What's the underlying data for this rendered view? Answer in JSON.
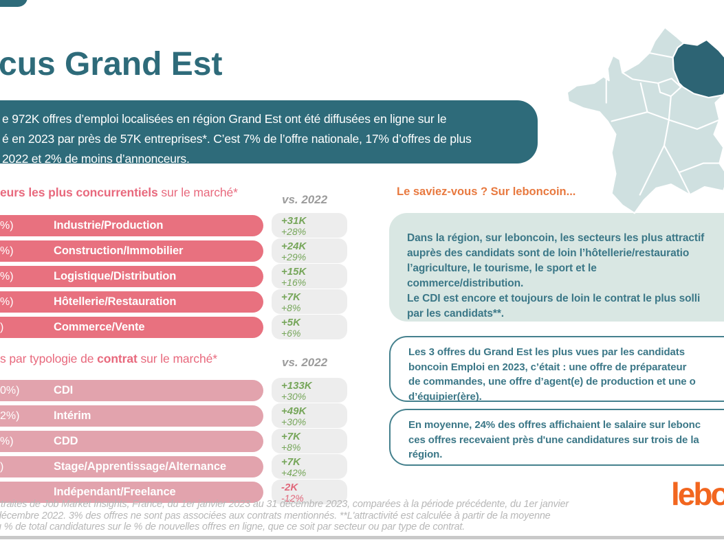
{
  "header": {
    "title": "cus Grand Est",
    "intro_lines": [
      "e 972K offres d’emploi localisées en région Grand Est ont été diffusées en ligne sur le",
      "é en 2023 par près de 57K entreprises*. C’est 7% de l’offre nationale, 17% d’offres de plus",
      "2022 et 2% de moins d’annonceurs."
    ]
  },
  "charts": [
    {
      "title_segments": [
        {
          "text": "eurs les plus concurrentiels",
          "bold": true
        },
        {
          "text": " sur le marché*",
          "bold": false
        }
      ],
      "vs_label": "vs. 2022",
      "rows": [
        {
          "left_fragment": "%)",
          "label": "Industrie/Production",
          "delta": "+31K",
          "pct": "+28%",
          "negative": false
        },
        {
          "left_fragment": "%)",
          "label": "Construction/Immobilier",
          "delta": "+24K",
          "pct": "+29%",
          "negative": false
        },
        {
          "left_fragment": "%)",
          "label": "Logistique/Distribution",
          "delta": "+15K",
          "pct": "+16%",
          "negative": false
        },
        {
          "left_fragment": "%)",
          "label": "Hôtellerie/Restauration",
          "delta": "+7K",
          "pct": "+8%",
          "negative": false
        },
        {
          "left_fragment": ")",
          "label": "Commerce/Vente",
          "delta": "+5K",
          "pct": "+6%",
          "negative": false
        }
      ]
    },
    {
      "title_segments": [
        {
          "text": "s par typologie de ",
          "bold": false
        },
        {
          "text": "contrat",
          "bold": true
        },
        {
          "text": " sur le marché*",
          "bold": false
        }
      ],
      "vs_label": "vs. 2022",
      "rows": [
        {
          "left_fragment": "0%)",
          "label": "CDI",
          "delta": "+133K",
          "pct": "+30%",
          "negative": false
        },
        {
          "left_fragment": "2%)",
          "label": "Intérim",
          "delta": "+49K",
          "pct": "+30%",
          "negative": false
        },
        {
          "left_fragment": "%)",
          "label": "CDD",
          "delta": "+7K",
          "pct": "+8%",
          "negative": false
        },
        {
          "left_fragment": ")",
          "label": "Stage/Apprentissage/Alternance",
          "delta": "+7K",
          "pct": "+42%",
          "negative": false
        },
        {
          "left_fragment": "",
          "label": "Indépendant/Freelance",
          "delta": "-2K",
          "pct": "-12%",
          "negative": true
        }
      ]
    }
  ],
  "chart_data": [
    {
      "type": "bar",
      "orientation": "horizontal",
      "title": "eurs les plus concurrentiels sur le marché*",
      "legend": "vs. 2022",
      "categories": [
        "Industrie/Production",
        "Construction/Immobilier",
        "Logistique/Distribution",
        "Hôtellerie/Restauration",
        "Commerce/Vente"
      ],
      "series": [
        {
          "name": "Évolution vs. 2022 (K offres)",
          "values": [
            31,
            24,
            15,
            7,
            5
          ]
        },
        {
          "name": "Évolution vs. 2022 (%)",
          "values": [
            28,
            29,
            16,
            8,
            6
          ]
        }
      ]
    },
    {
      "type": "bar",
      "orientation": "horizontal",
      "title": "s par typologie de contrat sur le marché*",
      "legend": "vs. 2022",
      "categories": [
        "CDI",
        "Intérim",
        "CDD",
        "Stage/Apprentissage/Alternance",
        "Indépendant/Freelance"
      ],
      "series": [
        {
          "name": "Évolution vs. 2022 (K offres)",
          "values": [
            133,
            49,
            7,
            7,
            -2
          ]
        },
        {
          "name": "Évolution vs. 2022 (%)",
          "values": [
            30,
            30,
            8,
            42,
            -12
          ]
        }
      ]
    }
  ],
  "right_panel": {
    "heading": "Le saviez-vous ? Sur leboncoin...",
    "boxes": [
      {
        "variant": "filled",
        "lines": [
          [
            {
              "text": "Dans la région, sur leboncoin, les secteurs les plus attractif",
              "bold": false
            }
          ],
          [
            {
              "text": "auprès des candidats sont de loin ",
              "bold": false
            },
            {
              "text": "l’hôtellerie/restauratio",
              "bold": true
            }
          ],
          [
            {
              "text": "l’agriculture, le tourisme, le sport et le",
              "bold": true
            }
          ],
          [
            {
              "text": "commerce/distribution",
              "bold": true
            },
            {
              "text": ".",
              "bold": false
            }
          ],
          [
            {
              "text": "Le CDI est encore et toujours de loin le contrat le plus solli",
              "bold": false
            }
          ],
          [
            {
              "text": "par les candidats**.",
              "bold": false
            }
          ]
        ]
      },
      {
        "variant": "outline",
        "lines": [
          [
            {
              "text": "Les 3 offres du Grand Est les plus vues par les candidats",
              "bold": true
            }
          ],
          [
            {
              "text": "boncoin Emploi en 2023, c’était : ",
              "bold": true
            },
            {
              "text": "une offre de préparateur",
              "bold": false
            }
          ],
          [
            {
              "text": "de commandes, une offre d’agent(e) de production et une o",
              "bold": false
            }
          ],
          [
            {
              "text": "d’équipier(ère).",
              "bold": false
            }
          ]
        ]
      },
      {
        "variant": "outline",
        "lines": [
          [
            {
              "text": "En moyenne, 24% des offres affichaient le salaire sur lebonc",
              "bold": false
            }
          ],
          [
            {
              "text": "ces offres recevaient près d'une candidatures sur trois de la",
              "bold": false
            }
          ],
          [
            {
              "text": "région.",
              "bold": false
            }
          ]
        ]
      }
    ]
  },
  "map": {
    "highlight_region": "Grand Est"
  },
  "logo": {
    "text": "lebo"
  },
  "footnote_lines": [
    "xtraites de Job Market Insights, France, du 1er janvier 2023 au 31 décembre 2023, comparées à la période précédente, du 1er janvier",
    "décembre 2022. 3% des offres ne sont pas associées aux contrats mentionnés. **L'attractivité est calculée à partir de la moyenne",
    "u % de total candidatures sur le % de nouvelles offres en ligne, que ce soit par secteur ou par type de contrat."
  ],
  "colors": {
    "dark_teal": "#2e6b7a",
    "map_highlight": "#2d6474",
    "map_region": "#cfe0e0",
    "bar_pink_sectors": "#e8717f",
    "bar_pink_contracts": "#e2a3ad",
    "heading_pink": "#e8697d",
    "pill_gray": "#ededed",
    "positive_green": "#76a65a",
    "negative_red": "#e0687b",
    "orange_heading": "#e8793f",
    "logo_orange": "#f2661f",
    "mint_box": "#d9e7e3",
    "box_border_teal": "#44808d",
    "box_text_teal": "#3b7787",
    "footnote_gray": "#b7b7b7"
  }
}
